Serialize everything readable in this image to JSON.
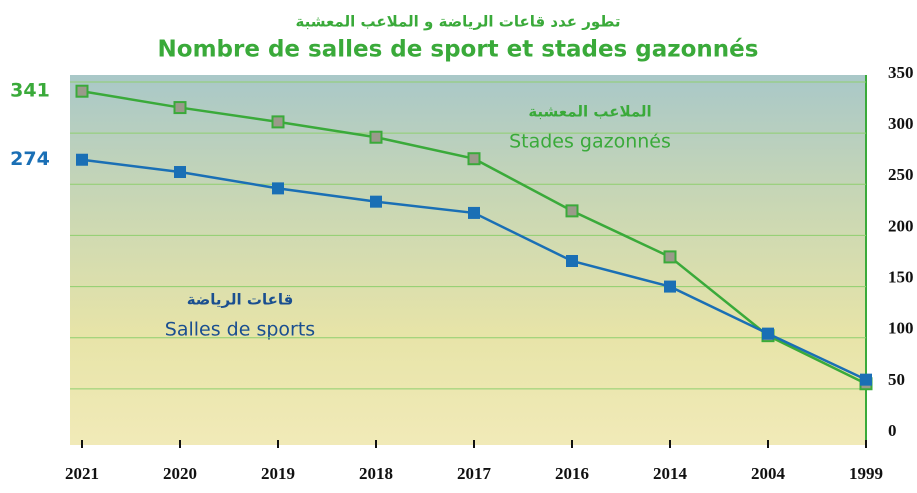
{
  "chart_data": {
    "type": "line",
    "title": "Nombre de salles de sport et stades gazonnés",
    "subtitle": "تطور عدد قاعات الرياضة و الملاعب المعشبة",
    "categories": [
      "2021",
      "2020",
      "2019",
      "2018",
      "2017",
      "2016",
      "2014",
      "2004",
      "1999"
    ],
    "series": [
      {
        "name": "Stades gazonnés",
        "arabic_name": "الملاعب المعشبة",
        "color": "#3aaa3a",
        "values": [
          341,
          325,
          311,
          296,
          275,
          224,
          179,
          102,
          55
        ]
      },
      {
        "name": "Salles de sports",
        "arabic_name": "قاعات الرياضة",
        "color": "#1a6fb5",
        "values": [
          274,
          262,
          246,
          233,
          222,
          175,
          150,
          104,
          59
        ]
      }
    ],
    "ylim": [
      0,
      350
    ],
    "yticks": [
      0,
      50,
      100,
      150,
      200,
      250,
      300,
      350
    ],
    "grid": true
  }
}
